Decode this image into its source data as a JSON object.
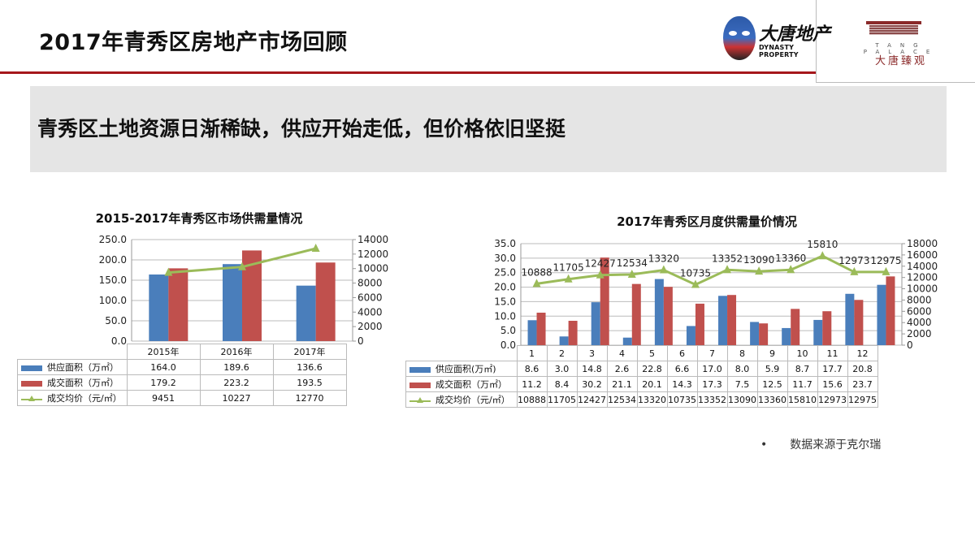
{
  "page": {
    "title": "2017年青秀区房地产市场回顾",
    "banner": "青秀区土地资源日渐稀缺，供应开始走低，但价格依旧坚挺",
    "source_bullet": "•",
    "source": "数据来源于克尔瑞"
  },
  "logos": {
    "dynasty_cn": "大唐地产",
    "dynasty_en": "DYNASTY PROPERTY",
    "palace_en": "TANG PALACE",
    "palace_cn": "大唐臻观"
  },
  "colors": {
    "supply": "#4a7ebb",
    "deal": "#c0504d",
    "price": "#9bbb59",
    "accent_red": "#a5171b"
  },
  "chart_data": [
    {
      "type": "bar",
      "title": "2015-2017年青秀区市场供需量情况",
      "categories": [
        "2015年",
        "2016年",
        "2017年"
      ],
      "series": [
        {
          "name": "供应面积（万㎡）",
          "type": "bar",
          "axis": "left",
          "values": [
            164.0,
            189.6,
            136.6
          ]
        },
        {
          "name": "成交面积（万㎡）",
          "type": "bar",
          "axis": "left",
          "values": [
            179.2,
            223.2,
            193.5
          ]
        },
        {
          "name": "成交均价（元/㎡）",
          "type": "line",
          "axis": "right",
          "values": [
            9451,
            10227,
            12770
          ]
        }
      ],
      "ylim": [
        0,
        250
      ],
      "yticks": [
        "0.0",
        "50.0",
        "100.0",
        "150.0",
        "200.0",
        "250.0"
      ],
      "y2lim": [
        0,
        14000
      ],
      "y2ticks": [
        "0",
        "2000",
        "4000",
        "6000",
        "8000",
        "10000",
        "12000",
        "14000"
      ],
      "grid": true,
      "legend": "data-table"
    },
    {
      "type": "bar",
      "title": "2017年青秀区月度供需量价情况",
      "categories": [
        "1",
        "2",
        "3",
        "4",
        "5",
        "6",
        "7",
        "8",
        "9",
        "10",
        "11",
        "12"
      ],
      "series": [
        {
          "name": "供应面积(万㎡)",
          "type": "bar",
          "axis": "left",
          "values": [
            8.6,
            3.0,
            14.8,
            2.6,
            22.8,
            6.6,
            17.0,
            8.0,
            5.9,
            8.7,
            17.7,
            20.8
          ]
        },
        {
          "name": "成交面积（万㎡）",
          "type": "bar",
          "axis": "left",
          "values": [
            11.2,
            8.4,
            30.2,
            21.1,
            20.1,
            14.3,
            17.3,
            7.5,
            12.5,
            11.7,
            15.6,
            23.7
          ]
        },
        {
          "name": "成交均价（元/㎡）",
          "type": "line",
          "axis": "right",
          "values": [
            10888,
            11705,
            12427,
            12534,
            13320,
            10735,
            13352,
            13090,
            13360,
            15810,
            12973,
            12975
          ]
        }
      ],
      "ylim": [
        0,
        35
      ],
      "yticks": [
        "0.0",
        "5.0",
        "10.0",
        "15.0",
        "20.0",
        "25.0",
        "30.0",
        "35.0"
      ],
      "y2lim": [
        0,
        18000
      ],
      "y2ticks": [
        "0",
        "2000",
        "4000",
        "6000",
        "8000",
        "10000",
        "12000",
        "14000",
        "16000",
        "18000"
      ],
      "grid": true,
      "legend": "data-table",
      "data_labels": "line"
    }
  ]
}
